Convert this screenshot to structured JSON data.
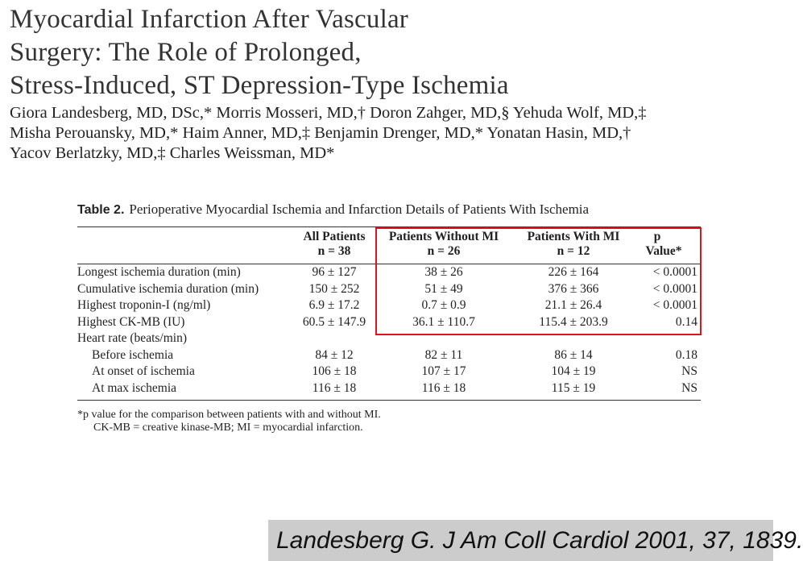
{
  "paper": {
    "title_lines": [
      "Myocardial Infarction After Vascular",
      "Surgery: The Role of Prolonged,",
      "Stress-Induced, ST Depression-Type Ischemia"
    ],
    "author_lines": [
      "Giora Landesberg, MD, DSc,* Morris Mosseri, MD,† Doron Zahger, MD,§ Yehuda Wolf, MD,‡",
      "Misha Perouansky, MD,* Haim Anner, MD,‡ Benjamin Drenger, MD,* Yonatan Hasin, MD,†",
      "Yacov Berlatzky, MD,‡ Charles Weissman, MD*"
    ]
  },
  "table": {
    "label": "Table 2.",
    "caption": "Perioperative Myocardial Ischemia and Infarction Details of Patients With Ischemia",
    "headers": [
      {
        "line1": "",
        "line2": ""
      },
      {
        "line1": "All Patients",
        "line2": "n = 38"
      },
      {
        "line1": "Patients Without MI",
        "line2": "n = 26"
      },
      {
        "line1": "Patients With MI",
        "line2": "n = 12"
      },
      {
        "line1": "p",
        "line2": "Value*"
      }
    ],
    "rows": [
      {
        "label": "Longest ischemia duration (min)",
        "all": "96 ± 127",
        "without_mi": "38 ± 26",
        "with_mi": "226 ± 164",
        "p": "< 0.0001",
        "indent": false
      },
      {
        "label": "Cumulative ischemia duration (min)",
        "all": "150 ± 252",
        "without_mi": "51 ± 49",
        "with_mi": "376 ± 366",
        "p": "< 0.0001",
        "indent": false
      },
      {
        "label": "Highest troponin-I (ng/ml)",
        "all": "6.9 ± 17.2",
        "without_mi": "0.7 ± 0.9",
        "with_mi": "21.1 ± 26.4",
        "p": "< 0.0001",
        "indent": false
      },
      {
        "label": "Highest CK-MB (IU)",
        "all": "60.5 ± 147.9",
        "without_mi": "36.1 ± 110.7",
        "with_mi": "115.4 ± 203.9",
        "p": "0.14",
        "indent": false
      },
      {
        "label": "Heart rate (beats/min)",
        "all": "",
        "without_mi": "",
        "with_mi": "",
        "p": "",
        "indent": false
      },
      {
        "label": "Before ischemia",
        "all": "84 ± 12",
        "without_mi": "82 ± 11",
        "with_mi": "86 ± 14",
        "p": "0.18",
        "indent": true
      },
      {
        "label": "At onset of ischemia",
        "all": "106 ± 18",
        "without_mi": "107 ± 17",
        "with_mi": "104 ± 19",
        "p": "NS",
        "indent": true
      },
      {
        "label": "At max ischemia",
        "all": "116 ± 18",
        "without_mi": "116 ± 18",
        "with_mi": "115 ± 19",
        "p": "NS",
        "indent": true
      }
    ],
    "footnotes": [
      "*p value for the comparison between patients with and without MI.",
      "CK-MB = creative kinase-MB; MI = myocardial infarction."
    ]
  },
  "highlight": {
    "color": "#e0141e"
  },
  "citation": {
    "text": "Landesberg G. J Am Coll Cardiol 2001, 37, 1839.",
    "background": "#cccccc"
  }
}
